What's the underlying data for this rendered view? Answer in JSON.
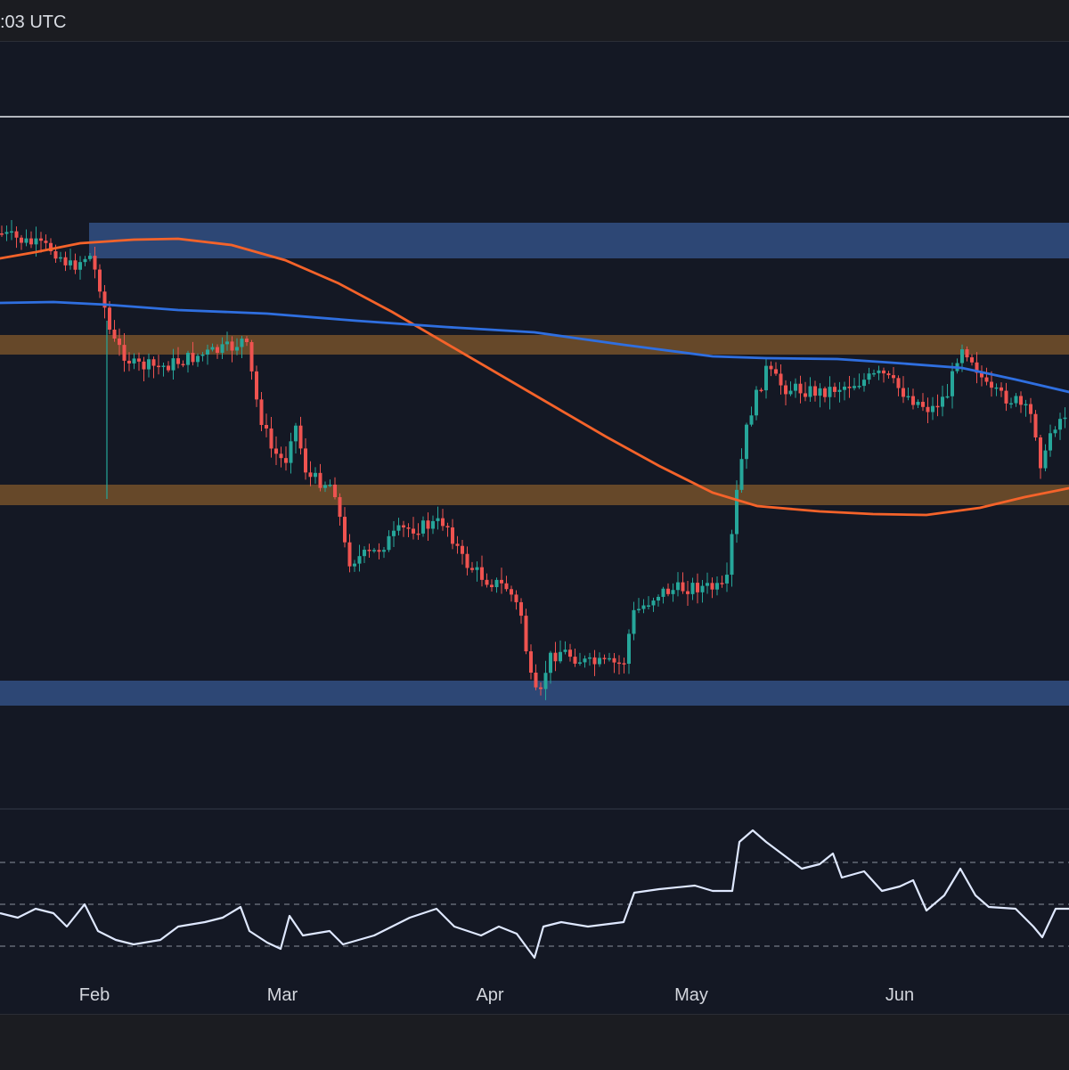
{
  "header": {
    "clock_text": ":03 UTC"
  },
  "chart_data": {
    "type": "candlestick",
    "title": "",
    "x_ticks": [
      "Feb",
      "Mar",
      "Apr",
      "May",
      "Jun"
    ],
    "y_axis_labels_visible": false,
    "colors": {
      "background": "#141824",
      "up": "#26a69a",
      "down": "#ef5350",
      "ma_orange": "#f5632a",
      "ma_blue": "#2f6fe0",
      "support_blue": "#2e4a7a",
      "zone_orange": "#6a4b2a",
      "oscillator": "#dfe8ff"
    },
    "zones": [
      {
        "name": "upper-blue-zone",
        "color": "blue"
      },
      {
        "name": "upper-orange-zone",
        "color": "orange"
      },
      {
        "name": "lower-orange-zone",
        "color": "orange"
      },
      {
        "name": "lower-blue-zone",
        "color": "blue"
      }
    ],
    "horizontal_line": true,
    "oscillator": {
      "levels": [
        70,
        50,
        30
      ],
      "range": [
        0,
        100
      ]
    },
    "notes": "Price axis values are not shown; series are approximated as relative price levels."
  }
}
